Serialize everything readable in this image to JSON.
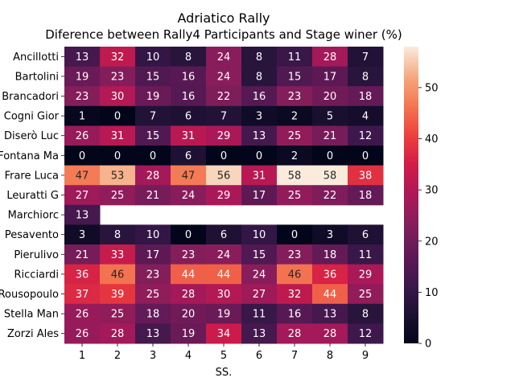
{
  "chart_data": {
    "type": "heatmap",
    "title": "Adriatico Rally",
    "subtitle": "Diference between Rally4 Participants and Stage winer (%)",
    "xlabel": "SS.",
    "ylabel": "",
    "x": [
      "1",
      "2",
      "3",
      "4",
      "5",
      "6",
      "7",
      "8",
      "9"
    ],
    "y": [
      "Ancillotti",
      "Bartolini ",
      "Brancadori",
      "Cogni Gior",
      "Diserò Luc",
      "Fontana Ma",
      "Frare Luca",
      "Leuratti G",
      "Marchiorc ",
      "Pesavento ",
      "Pierulivo ",
      "Ricciardi ",
      "Rousopoulo",
      "Stella Man",
      "Zorzi Ales"
    ],
    "values": [
      [
        13,
        32,
        10,
        8,
        24,
        8,
        11,
        28,
        7
      ],
      [
        19,
        23,
        15,
        16,
        24,
        8,
        15,
        17,
        8
      ],
      [
        23,
        30,
        19,
        16,
        22,
        16,
        23,
        20,
        18
      ],
      [
        1,
        0,
        7,
        6,
        7,
        3,
        2,
        5,
        4
      ],
      [
        26,
        31,
        15,
        31,
        29,
        13,
        25,
        21,
        12
      ],
      [
        0,
        0,
        0,
        6,
        0,
        0,
        2,
        0,
        0
      ],
      [
        47,
        53,
        28,
        47,
        56,
        31,
        58,
        58,
        38
      ],
      [
        27,
        25,
        21,
        24,
        29,
        17,
        25,
        22,
        18
      ],
      [
        13,
        null,
        null,
        null,
        null,
        null,
        null,
        null,
        null
      ],
      [
        3,
        8,
        10,
        0,
        6,
        10,
        0,
        3,
        6
      ],
      [
        21,
        33,
        17,
        23,
        24,
        15,
        23,
        18,
        11
      ],
      [
        36,
        46,
        23,
        44,
        44,
        24,
        46,
        36,
        29
      ],
      [
        37,
        39,
        25,
        28,
        30,
        27,
        32,
        44,
        25
      ],
      [
        26,
        25,
        18,
        20,
        19,
        11,
        16,
        13,
        8
      ],
      [
        26,
        28,
        13,
        19,
        34,
        13,
        28,
        28,
        12
      ]
    ],
    "colorbar": {
      "min": 0,
      "max": 58,
      "ticks": [
        "0",
        "10",
        "20",
        "30",
        "40",
        "50"
      ]
    },
    "colormap": "rocket",
    "grid": false,
    "legend": "colorbar-right"
  }
}
